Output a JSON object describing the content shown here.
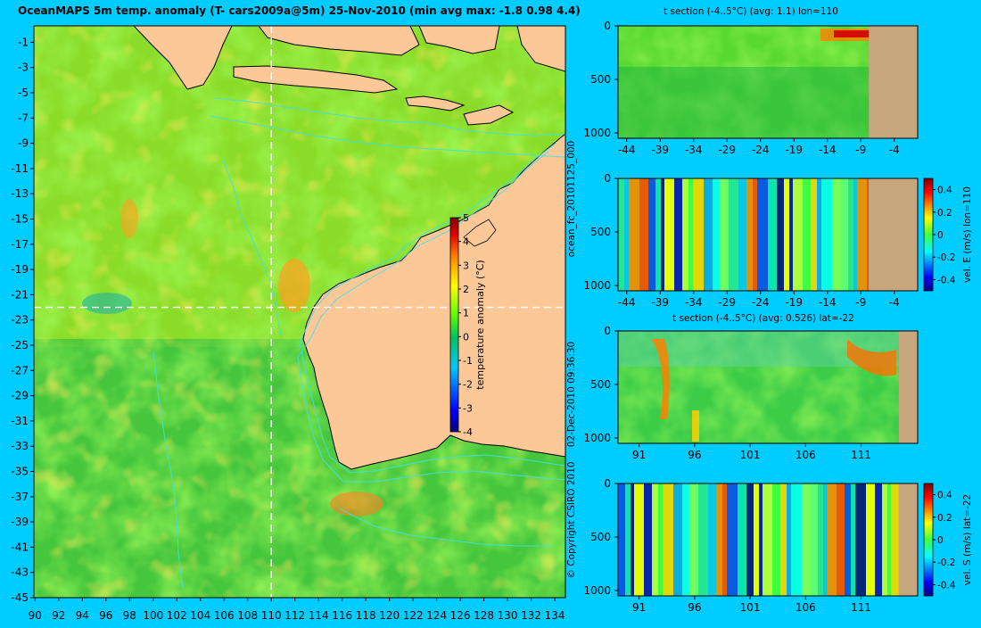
{
  "page": {
    "background": "#00ccff"
  },
  "main_title": "OceanMAPS 5m temp. anomaly (T- cars2009a@5m) 25-Nov-2010 (min avg max: -1.8 0.98 4.4)",
  "side_texts": {
    "run_id": "ocean_fc_20101125_000",
    "timestamp": "02-Dec-2010 09:36:30",
    "copyright": "© Copyright CSIRO 2010"
  },
  "colors": {
    "land": "#fdc898",
    "land_section": "#c9a77e",
    "coast": "#000000",
    "contour": "#40e0e8"
  },
  "chart_data": [
    {
      "id": "map",
      "type": "heatmap",
      "title": "OceanMAPS 5m temp. anomaly (T- cars2009a@5m) 25-Nov-2010 (min avg max: -1.8 0.98 4.4)",
      "x_ticks": [
        90,
        92,
        94,
        96,
        98,
        100,
        102,
        104,
        106,
        108,
        110,
        112,
        114,
        116,
        118,
        120,
        122,
        124,
        126,
        128,
        130,
        132,
        134
      ],
      "y_ticks": [
        -1,
        -3,
        -5,
        -7,
        -9,
        -11,
        -13,
        -15,
        -17,
        -19,
        -21,
        -23,
        -25,
        -27,
        -29,
        -31,
        -33,
        -35,
        -37,
        -39,
        -41,
        -43,
        -45
      ],
      "xlim": [
        89.9,
        134.9
      ],
      "ylim": [
        -45,
        0.3
      ],
      "section_lon": 110,
      "section_lat": -22,
      "colorbar": {
        "label": "temperature anomaly (°C)",
        "ticks": [
          5,
          4,
          3,
          2,
          1,
          0,
          -1,
          -2,
          -3,
          -4
        ],
        "range": [
          -4,
          5
        ]
      }
    },
    {
      "id": "section-t-lon",
      "type": "heatmap",
      "title": "t section (-4..5°C) (avg: 1.1) lon=110",
      "x_ticks": [
        -44,
        -39,
        -34,
        -29,
        -24,
        -19,
        -14,
        -9,
        -4
      ],
      "y_ticks": [
        0,
        500,
        1000
      ],
      "xlim": [
        -45.3,
        -0.5
      ],
      "ylim": [
        1050,
        0
      ],
      "land_from": -7.8
    },
    {
      "id": "section-v-lon",
      "type": "heatmap",
      "title": "",
      "x_ticks": [
        -44,
        -39,
        -34,
        -29,
        -24,
        -19,
        -14,
        -9,
        -4
      ],
      "y_ticks": [
        0,
        500,
        1000
      ],
      "xlim": [
        -45.3,
        -0.5
      ],
      "ylim": [
        1050,
        0
      ],
      "land_from": -7.8,
      "colorbar": {
        "label": "vel. E (m/s) lon=110",
        "ticks": [
          "0.4",
          "0.2",
          "0",
          "-0.2",
          "-0.4"
        ],
        "range": [
          -0.5,
          0.5
        ]
      }
    },
    {
      "id": "section-t-lat",
      "type": "heatmap",
      "title": "t section (-4..5°C) (avg: 0.526) lat=-22",
      "x_ticks": [
        91,
        96,
        101,
        106,
        111
      ],
      "y_ticks": [
        0,
        500,
        1000
      ],
      "xlim": [
        89.1,
        116.1
      ],
      "ylim": [
        1050,
        0
      ],
      "land_from": 114.4
    },
    {
      "id": "section-v-lat",
      "type": "heatmap",
      "title": "",
      "x_ticks": [
        91,
        96,
        101,
        106,
        111
      ],
      "y_ticks": [
        0,
        500,
        1000
      ],
      "xlim": [
        89.1,
        116.1
      ],
      "ylim": [
        1050,
        0
      ],
      "land_from": 114.4,
      "colorbar": {
        "label": "vel. S (m/s) lat=-22",
        "ticks": [
          "0.4",
          "0.2",
          "0",
          "-0.2",
          "-0.4"
        ],
        "range": [
          -0.5,
          0.5
        ]
      }
    }
  ]
}
